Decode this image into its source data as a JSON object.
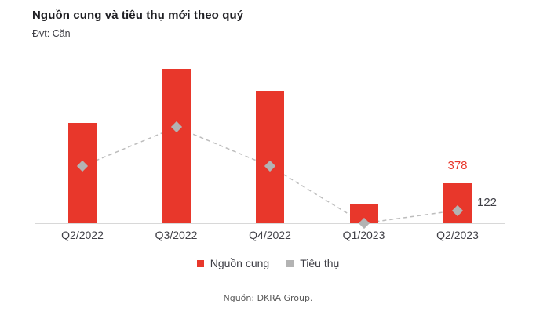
{
  "title": "Nguồn cung và tiêu thụ mới theo quý",
  "unit_label": "Đvt: Căn",
  "source": "Nguồn: DKRA Group.",
  "legend": [
    {
      "label": "Nguồn cung",
      "color": "#E8372B"
    },
    {
      "label": "Tiêu thụ",
      "color": "#B3B3B3"
    }
  ],
  "annotations": {
    "supply_q2_2023": "378",
    "consumption_q2_2023": "122"
  },
  "colors": {
    "bar": "#E8372B",
    "marker": "#B3B3B3",
    "line": "#BDBDBD",
    "axis": "#D8D8D8",
    "title_text": "#1F1F23",
    "body_text": "#3F3F46",
    "source_text": "#595959",
    "highlight": "#E8372B"
  },
  "chart_data": {
    "type": "bar",
    "title": "Nguồn cung và tiêu thụ mới theo quý",
    "unit": "Căn",
    "categories": [
      "Q2/2022",
      "Q3/2022",
      "Q4/2022",
      "Q1/2023",
      "Q2/2023"
    ],
    "series": [
      {
        "name": "Nguồn cung",
        "type": "bar",
        "color": "#E8372B",
        "values": [
          950,
          1460,
          1250,
          185,
          378
        ]
      },
      {
        "name": "Tiêu thụ",
        "type": "line",
        "style": "dashed",
        "marker": "diamond",
        "color": "#B3B3B3",
        "values": [
          540,
          910,
          540,
          0,
          122
        ]
      }
    ],
    "labeled_points": [
      {
        "category": "Q2/2023",
        "series": "Nguồn cung",
        "value": 378
      },
      {
        "category": "Q2/2023",
        "series": "Tiêu thụ",
        "value": 122
      }
    ],
    "xlabel": "",
    "ylabel": "",
    "ylim": [
      0,
      1520
    ],
    "grid": false,
    "legend_position": "bottom",
    "source": "Nguồn: DKRA Group."
  }
}
